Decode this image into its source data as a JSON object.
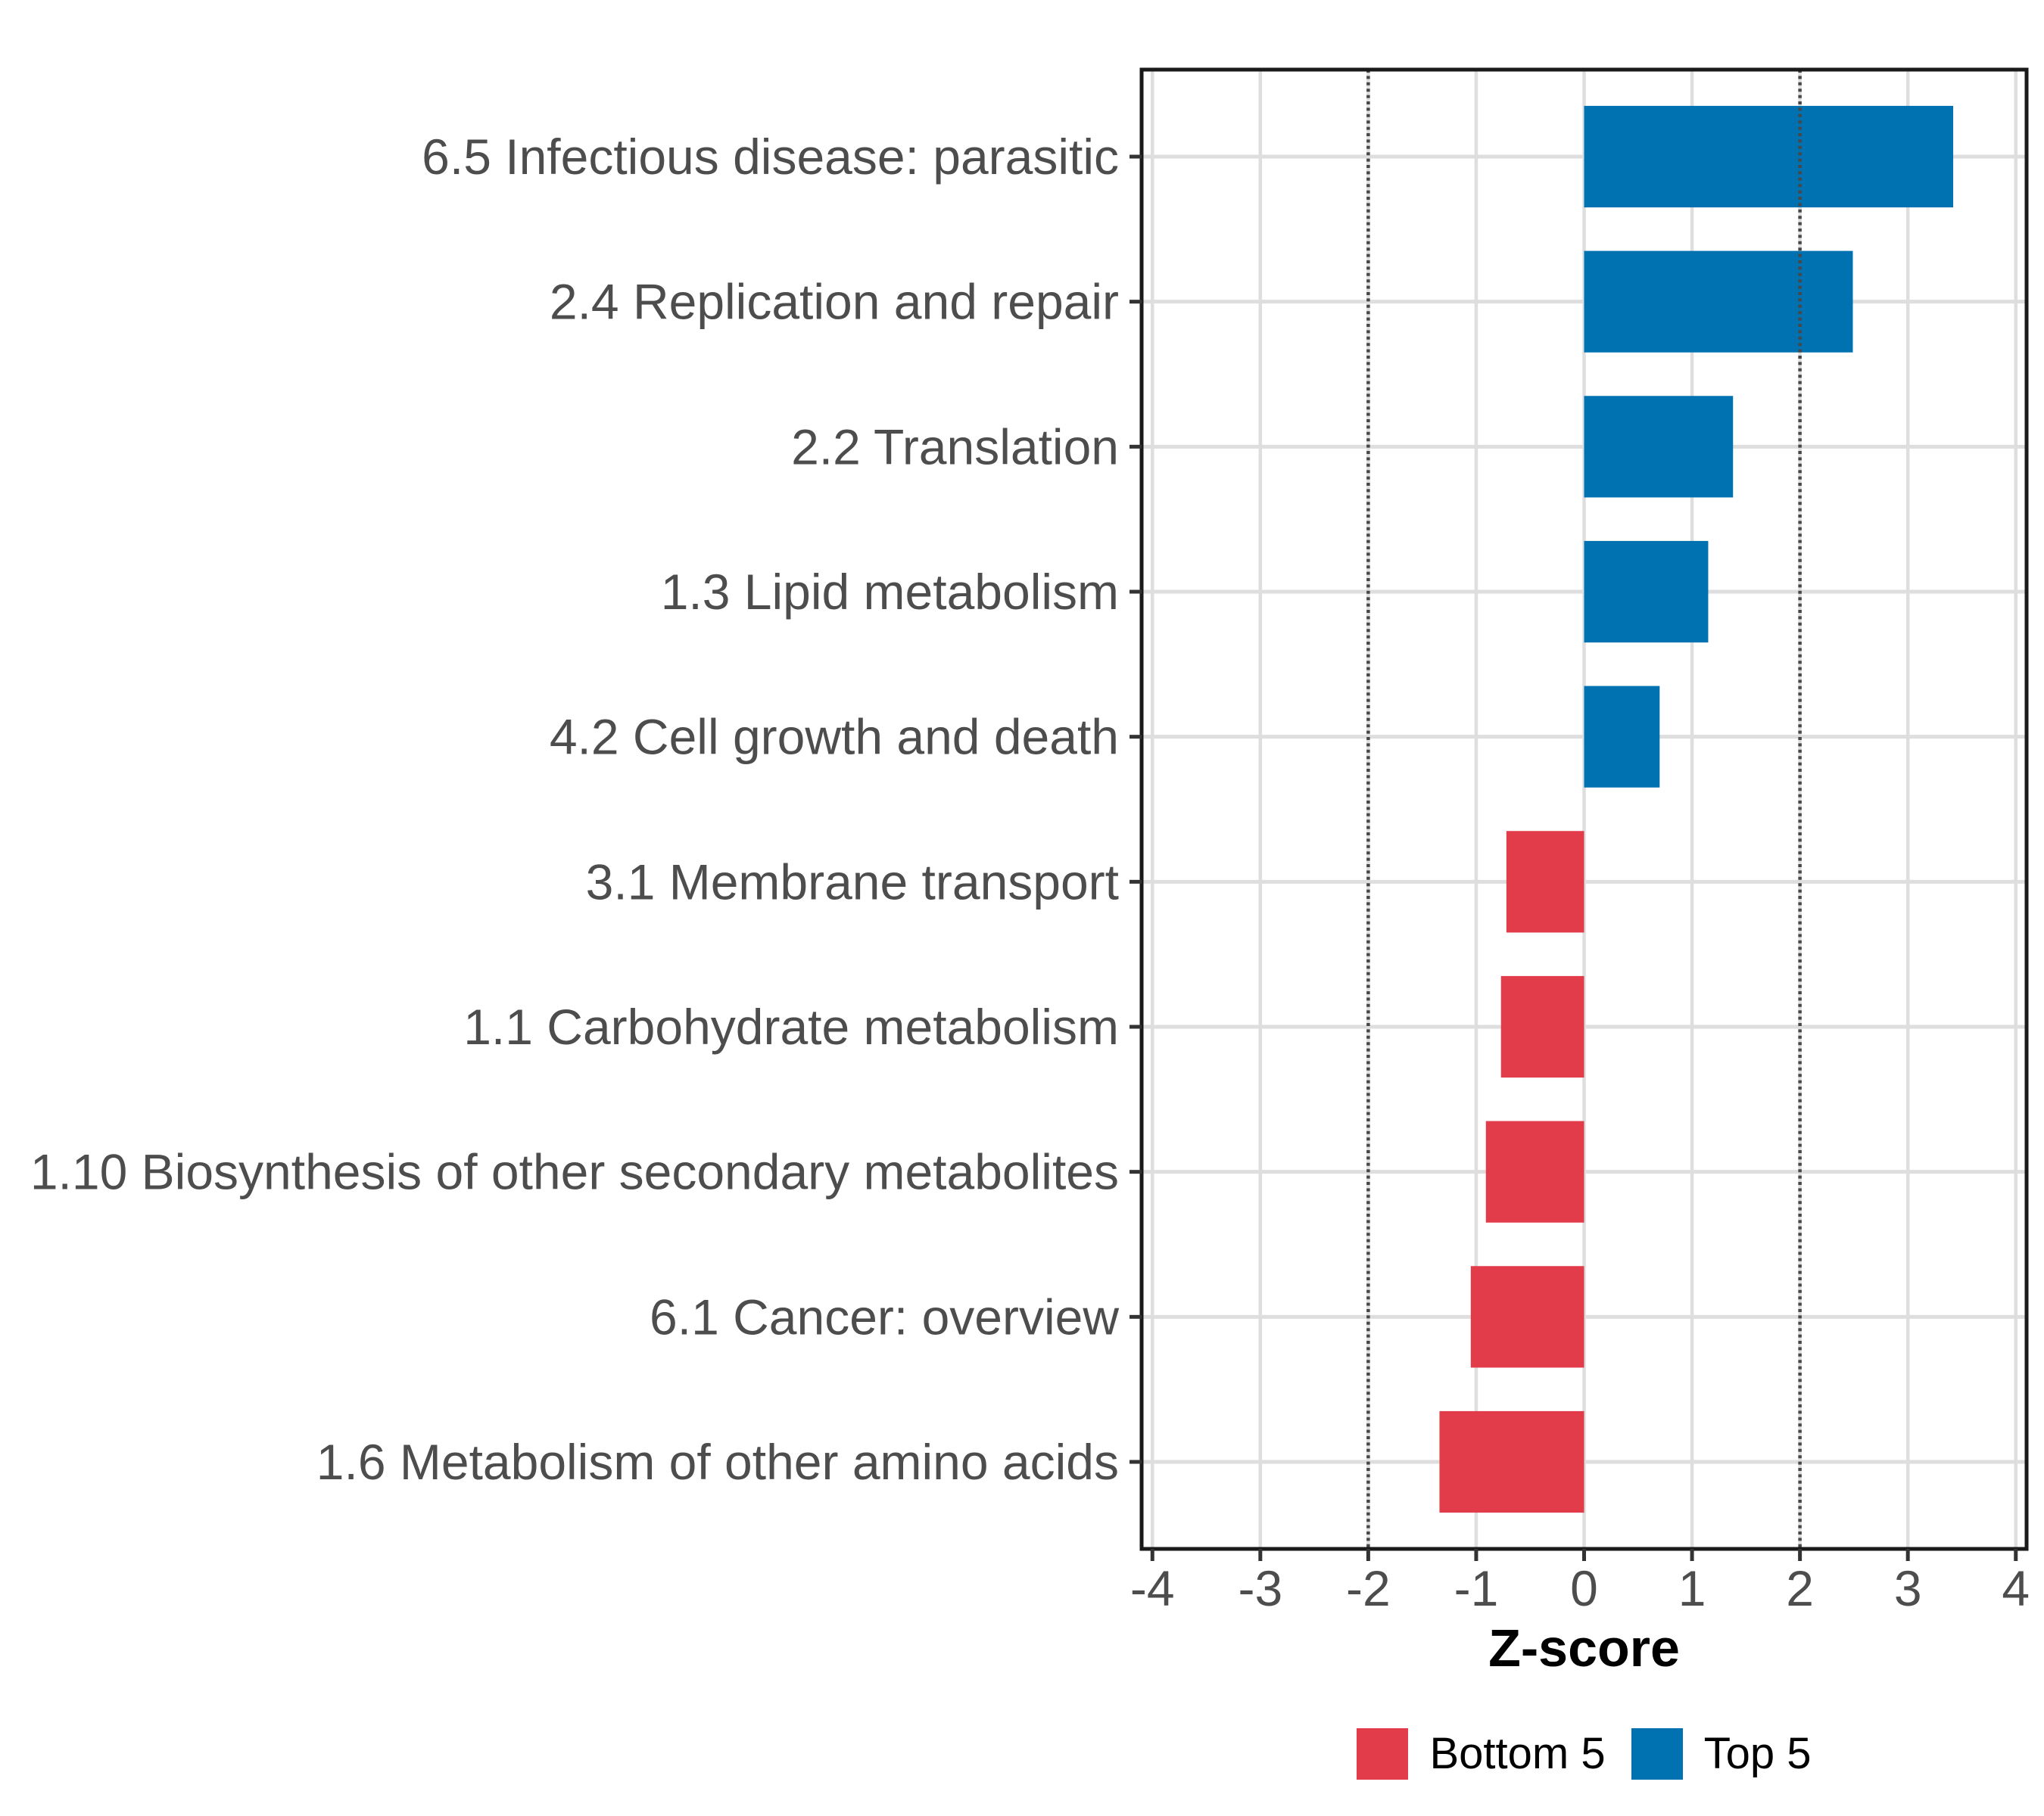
{
  "chart_data": {
    "type": "bar",
    "orientation": "horizontal",
    "title": "",
    "xlabel": "Z-score",
    "ylabel": "",
    "categories": [
      "6.5 Infectious disease: parasitic",
      "2.4 Replication and repair",
      "2.2 Translation",
      "1.3 Lipid metabolism",
      "4.2 Cell growth and death",
      "3.1 Membrane transport",
      "1.1 Carbohydrate metabolism",
      "1.10 Biosynthesis of other secondary metabolites",
      "6.1 Cancer: overview",
      "1.6 Metabolism of other amino acids"
    ],
    "bars": [
      {
        "category": "6.5 Infectious disease: parasitic",
        "value": 3.42,
        "group": "Top 5"
      },
      {
        "category": "2.4 Replication and repair",
        "value": 2.49,
        "group": "Top 5"
      },
      {
        "category": "2.2 Translation",
        "value": 1.38,
        "group": "Top 5"
      },
      {
        "category": "1.3 Lipid metabolism",
        "value": 1.15,
        "group": "Top 5"
      },
      {
        "category": "4.2 Cell growth and death",
        "value": 0.7,
        "group": "Top 5"
      },
      {
        "category": "3.1 Membrane transport",
        "value": -0.72,
        "group": "Bottom 5"
      },
      {
        "category": "1.1 Carbohydrate metabolism",
        "value": -0.77,
        "group": "Bottom 5"
      },
      {
        "category": "1.10 Biosynthesis of other secondary metabolites",
        "value": -0.91,
        "group": "Bottom 5"
      },
      {
        "category": "6.1 Cancer: overview",
        "value": -1.05,
        "group": "Bottom 5"
      },
      {
        "category": "1.6 Metabolism of other amino acids",
        "value": -1.34,
        "group": "Bottom 5"
      }
    ],
    "series": [
      {
        "name": "Top 5",
        "color": "#0072B2",
        "values": [
          3.42,
          2.49,
          1.38,
          1.15,
          0.7
        ]
      },
      {
        "name": "Bottom 5",
        "color": "#E23B4A",
        "values": [
          -0.72,
          -0.77,
          -0.91,
          -1.05,
          -1.34
        ]
      }
    ],
    "legend": {
      "position": "bottom",
      "entries": [
        {
          "label": "Bottom 5",
          "color": "#E23B4A"
        },
        {
          "label": "Top 5",
          "color": "#0072B2"
        }
      ]
    },
    "xlim": [
      -4.1,
      4.1
    ],
    "xticks": [
      -4,
      -3,
      -2,
      -1,
      0,
      1,
      2,
      3,
      4
    ],
    "reference_lines": {
      "values": [
        -2,
        2
      ],
      "style": "dotted",
      "color": "#474747"
    },
    "grid": {
      "major": "on",
      "minor": "off",
      "color": "#DEDEDE"
    },
    "bar_width_fraction": 0.7,
    "category_expansion": 0.6,
    "axis_text_color": "#4D4D4D",
    "tick_color": "#333333",
    "panel_border_color": "#1A1A1A",
    "panel_background": "#FFFFFF"
  }
}
